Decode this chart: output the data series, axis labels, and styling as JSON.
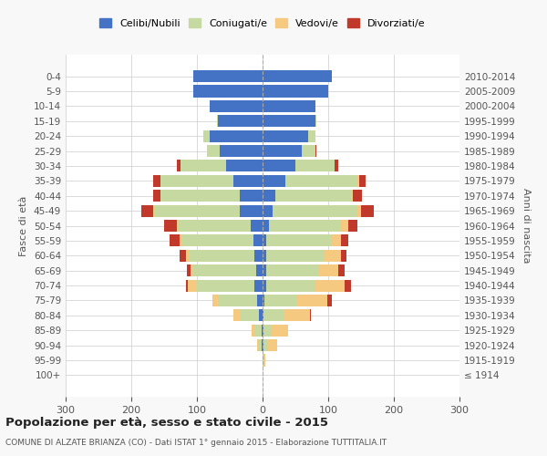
{
  "age_groups": [
    "100+",
    "95-99",
    "90-94",
    "85-89",
    "80-84",
    "75-79",
    "70-74",
    "65-69",
    "60-64",
    "55-59",
    "50-54",
    "45-49",
    "40-44",
    "35-39",
    "30-34",
    "25-29",
    "20-24",
    "15-19",
    "10-14",
    "5-9",
    "0-4"
  ],
  "birth_years": [
    "≤ 1914",
    "1915-1919",
    "1920-1924",
    "1925-1929",
    "1930-1934",
    "1935-1939",
    "1940-1944",
    "1945-1949",
    "1950-1954",
    "1955-1959",
    "1960-1964",
    "1965-1969",
    "1970-1974",
    "1975-1979",
    "1980-1984",
    "1985-1989",
    "1990-1994",
    "1995-1999",
    "2000-2004",
    "2005-2009",
    "2010-2014"
  ],
  "male": {
    "celibi": [
      0,
      0,
      2,
      2,
      5,
      8,
      12,
      10,
      12,
      14,
      18,
      35,
      35,
      45,
      55,
      65,
      80,
      68,
      80,
      105,
      105
    ],
    "coniugati": [
      0,
      0,
      5,
      10,
      30,
      60,
      90,
      95,
      100,
      110,
      110,
      130,
      120,
      110,
      70,
      20,
      10,
      2,
      0,
      0,
      0
    ],
    "vedovi": [
      0,
      0,
      2,
      5,
      10,
      8,
      12,
      5,
      5,
      3,
      2,
      2,
      0,
      0,
      0,
      0,
      0,
      0,
      0,
      0,
      0
    ],
    "divorziati": [
      0,
      0,
      0,
      0,
      0,
      0,
      2,
      5,
      10,
      15,
      20,
      18,
      12,
      12,
      5,
      0,
      0,
      0,
      0,
      0,
      0
    ]
  },
  "female": {
    "nubili": [
      0,
      0,
      2,
      2,
      2,
      3,
      5,
      5,
      5,
      5,
      10,
      15,
      20,
      35,
      50,
      60,
      70,
      80,
      80,
      100,
      105
    ],
    "coniugate": [
      0,
      2,
      5,
      12,
      30,
      50,
      75,
      80,
      90,
      100,
      110,
      130,
      115,
      110,
      60,
      20,
      10,
      2,
      0,
      0,
      0
    ],
    "vedove": [
      0,
      2,
      15,
      25,
      40,
      45,
      45,
      30,
      25,
      15,
      10,
      5,
      2,
      2,
      0,
      0,
      0,
      0,
      0,
      0,
      0
    ],
    "divorziate": [
      0,
      0,
      0,
      0,
      2,
      8,
      10,
      10,
      8,
      10,
      15,
      20,
      15,
      10,
      5,
      2,
      0,
      0,
      0,
      0,
      0
    ]
  },
  "colors": {
    "celibi_nubili": "#4472c4",
    "coniugati_e": "#c5d9a0",
    "vedovi_e": "#f5c97f",
    "divorziati_e": "#c0392b"
  },
  "title": "Popolazione per età, sesso e stato civile - 2015",
  "subtitle": "COMUNE DI ALZATE BRIANZA (CO) - Dati ISTAT 1° gennaio 2015 - Elaborazione TUTTITALIA.IT",
  "ylabel_left": "Fasce di età",
  "ylabel_right": "Anni di nascita",
  "xlim": 300,
  "xticks": [
    -300,
    -200,
    -100,
    0,
    100,
    200,
    300
  ],
  "xticklabels": [
    "300",
    "200",
    "100",
    "0",
    "100",
    "200",
    "300"
  ],
  "legend_labels": [
    "Celibi/Nubili",
    "Coniugati/e",
    "Vedovi/e",
    "Divorziati/e"
  ],
  "bg_color": "#f8f8f8",
  "plot_bg": "#ffffff",
  "bar_height": 0.8
}
